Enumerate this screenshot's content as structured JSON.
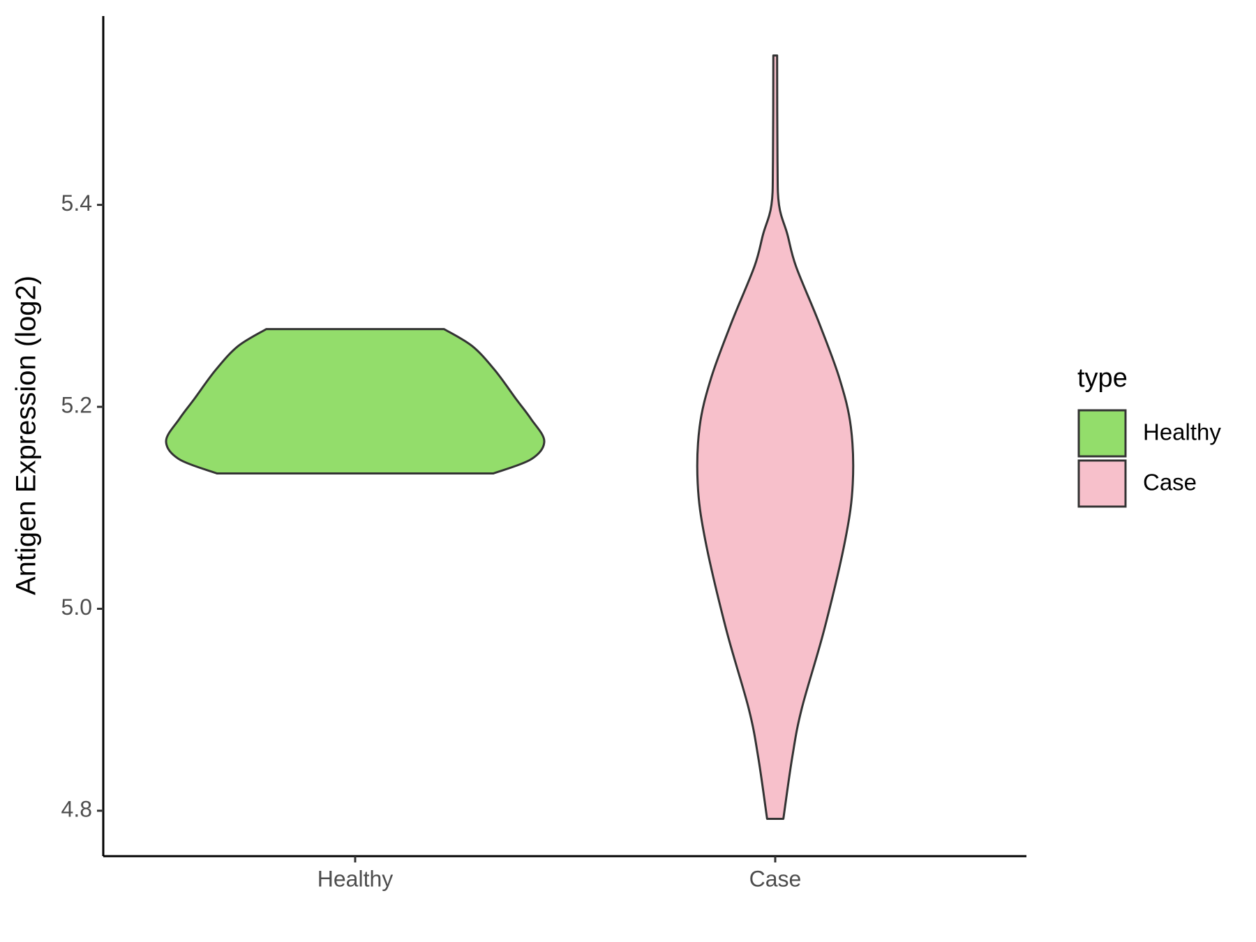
{
  "chart_data": {
    "type": "violin",
    "y_label": "Antigen Expression (log2)",
    "categories": [
      "Healthy",
      "Case"
    ],
    "legend_title": "type",
    "ylim": [
      4.755,
      5.587
    ],
    "yticks": [
      4.8,
      {
        "value": 5,
        "label": "5.0"
      },
      5.2,
      5.4
    ],
    "series": [
      {
        "name": "Healthy",
        "color": "#93dd6b",
        "y": [
          5.277,
          5.26,
          5.236,
          5.208,
          5.188,
          5.166,
          5.148,
          5.134
        ],
        "width": [
          0.47,
          0.62,
          0.74,
          0.85,
          0.93,
          1.0,
          0.93,
          0.73
        ]
      },
      {
        "name": "Case",
        "color": "#f7c0cb",
        "y": [
          5.548,
          5.443,
          5.4,
          5.371,
          5.339,
          5.284,
          5.228,
          5.18,
          5.124,
          5.068,
          4.98,
          4.901,
          4.853,
          4.792
        ],
        "width": [
          0.01,
          0.012,
          0.02,
          0.064,
          0.11,
          0.23,
          0.34,
          0.4,
          0.41,
          0.37,
          0.26,
          0.14,
          0.09,
          0.043
        ]
      }
    ]
  }
}
